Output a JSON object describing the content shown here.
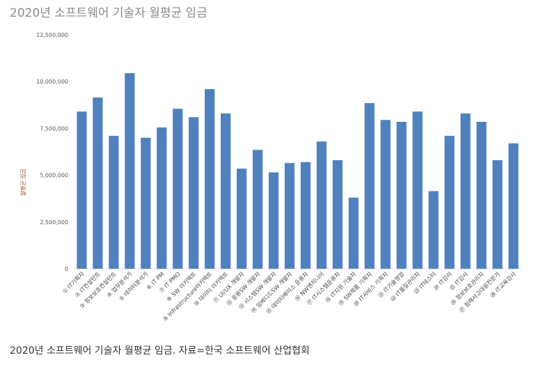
{
  "chart_data": {
    "type": "bar",
    "title": "2020년 소프트웨어 기술자 월평균 임금",
    "ylabel": "월평균 임금",
    "xlabel": "",
    "ylim": [
      0,
      12500000
    ],
    "yticks": [
      0,
      2500000,
      5000000,
      7500000,
      10000000,
      12500000
    ],
    "ytick_labels": [
      "0",
      "2,500,000",
      "5,000,000",
      "7,500,000",
      "10,000,000",
      "12,500,000"
    ],
    "grid": false,
    "legend": "none",
    "bar_color": "#4f81bd",
    "categories": [
      "① IT기획자",
      "② IT컨설턴트",
      "③ 정보보호컨설턴트",
      "④ 업무분석가",
      "⑤ 데이터분석가",
      "⑥ IT PM",
      "⑦ IT PMO",
      "⑧ SW 아키텍트",
      "⑨ Infrastructure아키텍트",
      "⑩ 데이터 아키텍트",
      "⑪ UI/UX 개발자",
      "⑫ 응용SW 개발자",
      "⑬ 시스템SW 개발자",
      "⑭ 임베디드SW 개발자",
      "⑮ 데이터베이스 운용자",
      "⑯ NW엔지니어",
      "⑰ IT시스템운용자",
      "⑱ IT지원 기술자",
      "⑲ SW제품 기획자",
      "⑳ IT서비스 기획자",
      "㉑ IT기술영업",
      "㉒ IT품질관리자",
      "㉓ IT테스터",
      "㉔ IT감리",
      "㉕ IT감사",
      "㉖ 정보보호관리자",
      "㉗ 침해사고대응전문가",
      "㉘ IT교육강사"
    ],
    "values": [
      8400000,
      9150000,
      7100000,
      10450000,
      7000000,
      7550000,
      8550000,
      8100000,
      9600000,
      8300000,
      5350000,
      6350000,
      5150000,
      5650000,
      5700000,
      6800000,
      5800000,
      3800000,
      8850000,
      7950000,
      7850000,
      8400000,
      4150000,
      7100000,
      8300000,
      7850000,
      5800000,
      6700000
    ]
  },
  "caption": "2020년 소프트웨어 기술자 월평균 임금. 자료=한국 소프트웨어 산업협회"
}
